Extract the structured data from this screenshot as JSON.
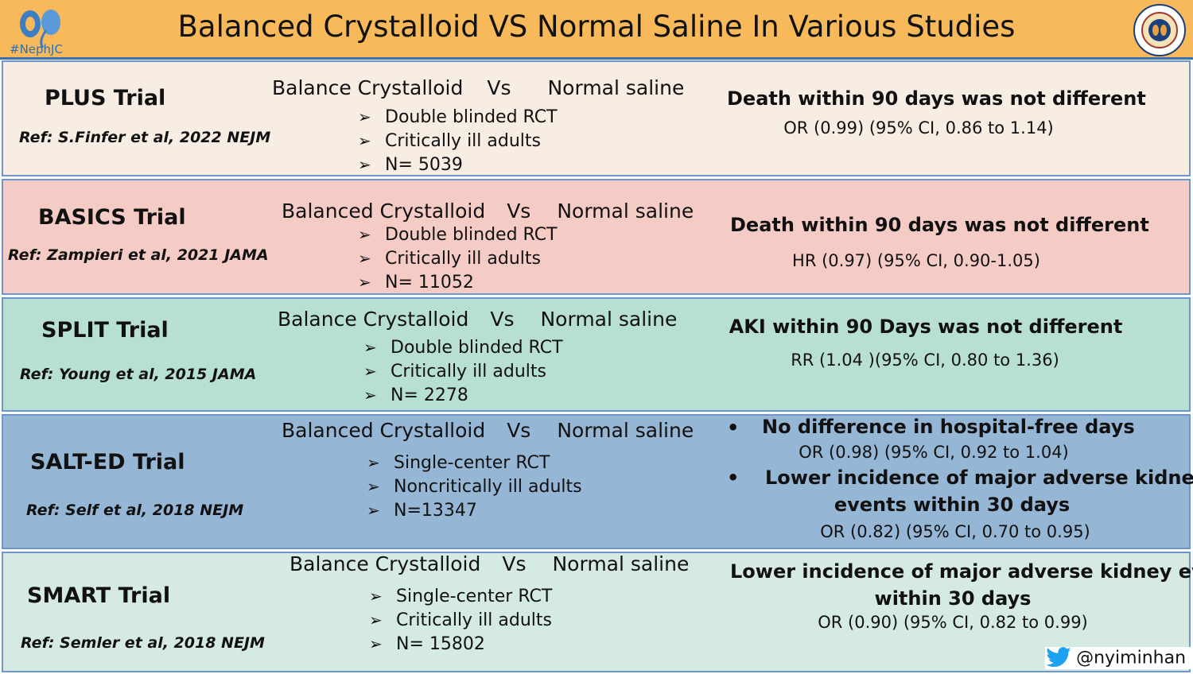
{
  "header": {
    "title": "Balanced Crystalloid VS Normal Saline In Various Studies",
    "logo_tag": "#NephJC",
    "logo_right_label": "NEPHROLOGY SOCIAL MEDIA COLLECTIVE",
    "colors": {
      "header_bg": "#f7b95a",
      "border": "#3a6fb0"
    }
  },
  "comparison": {
    "left": "Balance Crystalloid",
    "vs": "Vs",
    "right": "Normal saline",
    "left_alt": "Balanced Crystalloid"
  },
  "trials": [
    {
      "name": "PLUS Trial",
      "ref_prefix": "Ref: S.Finfer et al, 2022",
      "ref_journal": "NEJM",
      "bullets": [
        "Double blinded RCT",
        "Critically ill adults",
        "N= 5039"
      ],
      "result_title": "Death within 90 days was not different",
      "result_stat": "OR (0.99) (95% CI, 0.86 to 1.14)",
      "bg": "#f8ede3"
    },
    {
      "name": "BASICS  Trial",
      "ref": "Ref: Zampieri  et al, 2021 JAMA",
      "bullets": [
        "Double blinded RCT",
        "Critically ill adults",
        "N= 11052"
      ],
      "result_title": "Death within 90 days was not different",
      "result_stat": "HR (0.97)  (95% CI, 0.90-1.05)",
      "bg": "#f5cbc6"
    },
    {
      "name": "SPLIT  Trial",
      "ref": "Ref: Young  et al, 2015 JAMA",
      "bullets": [
        "Double blinded RCT",
        "Critically ill adults",
        "N= 2278"
      ],
      "result_title": "AKI within 90 Days was not different",
      "result_stat": "RR (1.04 )(95% CI, 0.80 to 1.36)",
      "bg": "#b8e0d2"
    },
    {
      "name": "SALT-ED Trial",
      "ref": "Ref: Self et al, 2018 NEJM",
      "bullets": [
        "Single-center RCT",
        "Noncritically ill adults",
        "N=13347"
      ],
      "result_1_title": "No difference in hospital-free days",
      "result_1_stat": "OR (0.98)  (95% CI, 0.92 to 1.04)",
      "result_2_title_line1": "Lower incidence of major adverse kidney",
      "result_2_title_line2": "events within 30 days",
      "result_2_stat": "OR (0.82)    (95% CI, 0.70  to 0.95)",
      "bg": "#95b6d4"
    },
    {
      "name": "SMART  Trial",
      "ref": "Ref: Semler et al, 2018 NEJM",
      "bullets": [
        "Single-center RCT",
        "Critically ill adults",
        "N= 15802"
      ],
      "result_title_line1": "Lower incidence of major adverse  kidney events",
      "result_title_line2": "within 30 days",
      "result_stat": "OR (0.90)    (95% CI, 0.82 to 0.99)",
      "bg": "#d5eae0"
    }
  ],
  "footer": {
    "handle": "@nyiminhan",
    "icon": "twitter-icon"
  }
}
